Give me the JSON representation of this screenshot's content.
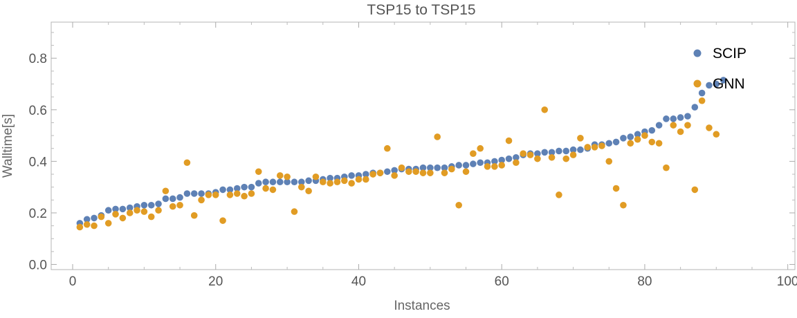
{
  "chart_data": {
    "type": "scatter",
    "title": "TSP15 to TSP15",
    "xlabel": "Instances",
    "ylabel": "Walltime[s]",
    "xlim": [
      -3,
      101
    ],
    "ylim": [
      -0.02,
      0.94
    ],
    "x_ticks": [
      0,
      20,
      40,
      60,
      80,
      100
    ],
    "y_ticks": [
      0.0,
      0.2,
      0.4,
      0.6,
      0.8
    ],
    "y_tick_labels": [
      "0.0",
      "0.2",
      "0.4",
      "0.6",
      "0.8"
    ],
    "legend_position": "top-right",
    "series": [
      {
        "name": "SCIP",
        "color": "#5E81B5",
        "x": [
          1,
          2,
          3,
          4,
          5,
          6,
          7,
          8,
          9,
          10,
          11,
          12,
          13,
          14,
          15,
          16,
          17,
          18,
          19,
          20,
          21,
          22,
          23,
          24,
          25,
          26,
          27,
          28,
          29,
          30,
          31,
          32,
          33,
          34,
          35,
          36,
          37,
          38,
          39,
          40,
          41,
          42,
          43,
          44,
          45,
          46,
          47,
          48,
          49,
          50,
          51,
          52,
          53,
          54,
          55,
          56,
          57,
          58,
          59,
          60,
          61,
          62,
          63,
          64,
          65,
          66,
          67,
          68,
          69,
          70,
          71,
          72,
          73,
          74,
          75,
          76,
          77,
          78,
          79,
          80,
          81,
          82,
          83,
          84,
          85,
          86,
          87,
          88,
          89,
          90,
          91
        ],
        "y": [
          0.16,
          0.175,
          0.18,
          0.19,
          0.21,
          0.215,
          0.215,
          0.22,
          0.225,
          0.23,
          0.23,
          0.235,
          0.255,
          0.255,
          0.26,
          0.275,
          0.275,
          0.275,
          0.275,
          0.28,
          0.29,
          0.29,
          0.295,
          0.3,
          0.3,
          0.315,
          0.32,
          0.32,
          0.32,
          0.32,
          0.32,
          0.32,
          0.325,
          0.325,
          0.33,
          0.335,
          0.335,
          0.34,
          0.345,
          0.345,
          0.35,
          0.355,
          0.355,
          0.36,
          0.365,
          0.37,
          0.37,
          0.37,
          0.375,
          0.375,
          0.375,
          0.375,
          0.38,
          0.385,
          0.385,
          0.39,
          0.395,
          0.395,
          0.4,
          0.405,
          0.41,
          0.415,
          0.425,
          0.43,
          0.43,
          0.435,
          0.435,
          0.44,
          0.44,
          0.445,
          0.445,
          0.45,
          0.465,
          0.465,
          0.47,
          0.475,
          0.49,
          0.495,
          0.505,
          0.515,
          0.52,
          0.54,
          0.565,
          0.565,
          0.57,
          0.575,
          0.61,
          0.665,
          0.695,
          0.7,
          0.715
        ]
      },
      {
        "name": "GNN",
        "color": "#E19C24",
        "x": [
          1,
          2,
          3,
          4,
          5,
          6,
          7,
          8,
          9,
          10,
          11,
          12,
          13,
          14,
          15,
          16,
          17,
          18,
          19,
          20,
          21,
          22,
          23,
          24,
          25,
          26,
          27,
          28,
          29,
          30,
          31,
          32,
          33,
          34,
          35,
          36,
          37,
          38,
          39,
          40,
          41,
          42,
          43,
          44,
          45,
          46,
          47,
          48,
          49,
          50,
          51,
          52,
          53,
          54,
          55,
          56,
          57,
          58,
          59,
          60,
          61,
          62,
          63,
          64,
          65,
          66,
          67,
          68,
          69,
          70,
          71,
          72,
          73,
          74,
          75,
          76,
          77,
          78,
          79,
          80,
          81,
          82,
          83,
          84,
          85,
          86,
          87,
          88,
          89,
          90
        ],
        "y": [
          0.145,
          0.155,
          0.15,
          0.185,
          0.16,
          0.195,
          0.18,
          0.2,
          0.21,
          0.205,
          0.185,
          0.21,
          0.285,
          0.225,
          0.23,
          0.395,
          0.19,
          0.25,
          0.27,
          0.27,
          0.17,
          0.27,
          0.275,
          0.265,
          0.275,
          0.36,
          0.295,
          0.29,
          0.345,
          0.34,
          0.205,
          0.3,
          0.285,
          0.34,
          0.32,
          0.315,
          0.32,
          0.325,
          0.315,
          0.33,
          0.33,
          0.35,
          0.355,
          0.45,
          0.345,
          0.375,
          0.36,
          0.36,
          0.355,
          0.355,
          0.495,
          0.355,
          0.37,
          0.23,
          0.36,
          0.43,
          0.45,
          0.38,
          0.38,
          0.385,
          0.48,
          0.395,
          0.43,
          0.425,
          0.41,
          0.6,
          0.415,
          0.27,
          0.41,
          0.425,
          0.49,
          0.455,
          0.455,
          0.46,
          0.4,
          0.295,
          0.23,
          0.47,
          0.485,
          0.5,
          0.475,
          0.47,
          0.375,
          0.54,
          0.515,
          0.54,
          0.29,
          0.635,
          0.53,
          0.505
        ]
      }
    ]
  }
}
